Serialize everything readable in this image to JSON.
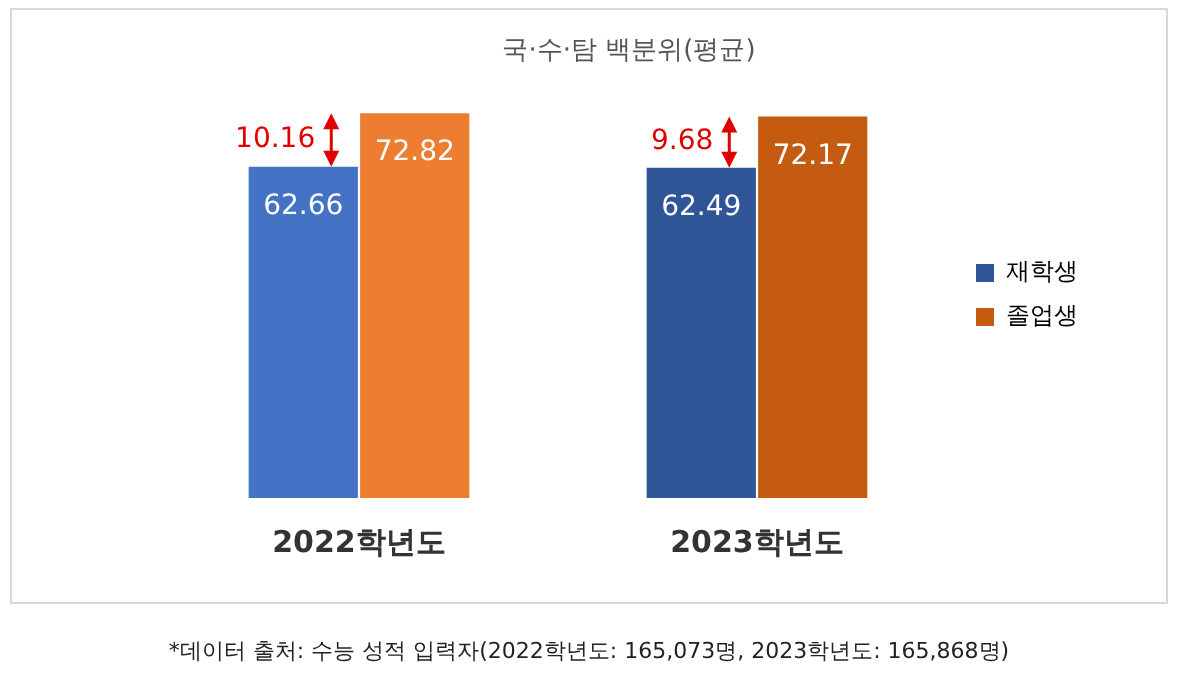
{
  "chart_data": {
    "type": "bar",
    "title": "국·수·탐 백분위(평균)",
    "categories": [
      "2022학년도",
      "2023학년도"
    ],
    "series": [
      {
        "name": "재학생",
        "color": "#2f5597",
        "colors": [
          "#4472c4",
          "#2f5597"
        ],
        "values": [
          62.66,
          62.49
        ]
      },
      {
        "name": "졸업생",
        "color": "#c55a11",
        "colors": [
          "#ed7d31",
          "#c55a11"
        ],
        "values": [
          72.82,
          72.17
        ]
      }
    ],
    "data_labels": true,
    "legend": "right",
    "grid": false,
    "annotations": [
      "10.16",
      "9.68",
      "*데이터 출처: 수능 성적 입력자(2022학년도: 165,073명, 2023학년도: 165,868명)"
    ]
  }
}
